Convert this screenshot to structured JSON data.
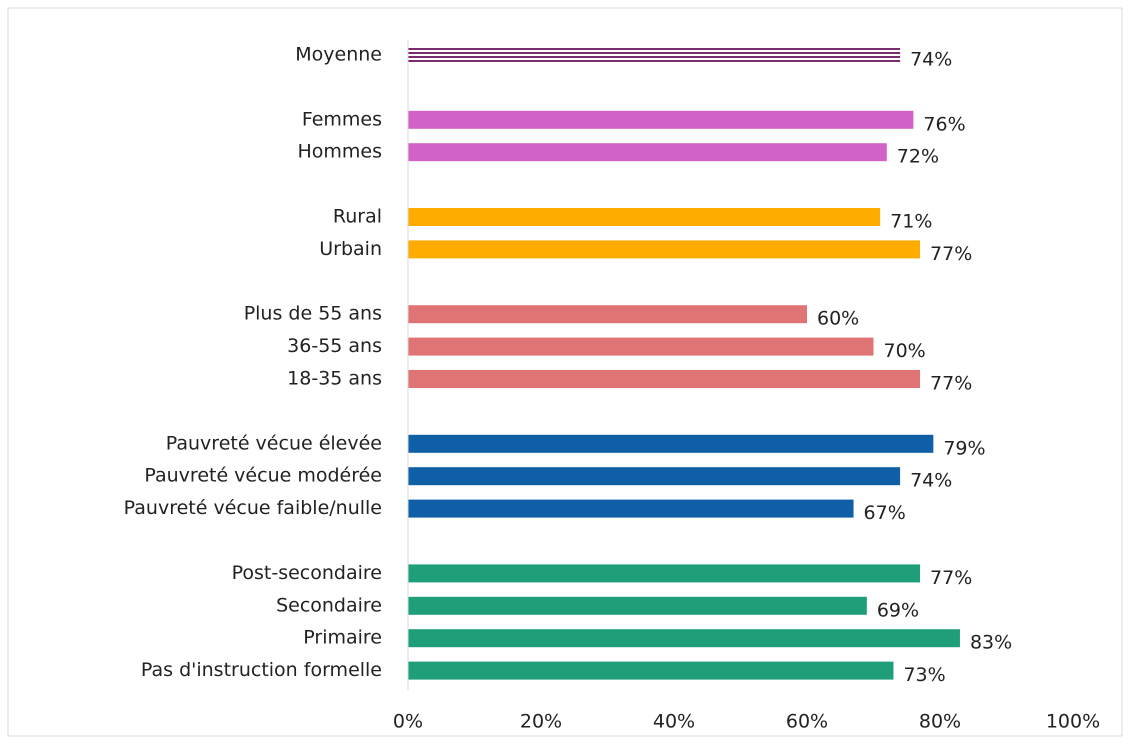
{
  "chart_data": {
    "type": "hbar",
    "categories": [
      "Moyenne",
      null,
      "Femmes",
      "Hommes",
      null,
      "Rural",
      "Urbain",
      null,
      "Plus de 55 ans",
      "36-55 ans",
      "18-35 ans",
      null,
      "Pauvreté vécue élevée",
      "Pauvreté vécue modérée",
      "Pauvreté vécue faible/nulle",
      null,
      "Post-secondaire",
      "Secondaire",
      "Primaire",
      "Pas d'instruction formelle"
    ],
    "values": [
      74,
      null,
      76,
      72,
      null,
      71,
      77,
      null,
      60,
      70,
      77,
      null,
      79,
      74,
      67,
      null,
      77,
      69,
      83,
      73
    ],
    "value_labels": [
      "74%",
      null,
      "76%",
      "72%",
      null,
      "71%",
      "77%",
      null,
      "60%",
      "70%",
      "77%",
      null,
      "79%",
      "74%",
      "67%",
      null,
      "77%",
      "69%",
      "83%",
      "73%"
    ],
    "colors": [
      "#7b2c6e",
      null,
      "#d163c6",
      "#d163c6",
      null,
      "#ffab00",
      "#ffab00",
      null,
      "#e07474",
      "#e07474",
      "#e07474",
      null,
      "#0f5fa6",
      "#0f5fa6",
      "#0f5fa6",
      null,
      "#1f9e7a",
      "#1f9e7a",
      "#1f9e7a",
      "#1f9e7a"
    ],
    "patterns": [
      "horizontal-lines",
      null,
      "solid",
      "solid",
      null,
      "solid",
      "solid",
      null,
      "solid",
      "solid",
      "solid",
      null,
      "solid",
      "solid",
      "solid",
      null,
      "solid",
      "solid",
      "solid",
      "solid"
    ],
    "xlim": [
      0,
      100
    ],
    "xticks": [
      {
        "value": 0,
        "label": "0%"
      },
      {
        "value": 20,
        "label": "20%"
      },
      {
        "value": 40,
        "label": "40%"
      },
      {
        "value": 60,
        "label": "60%"
      },
      {
        "value": 80,
        "label": "80%"
      },
      {
        "value": 100,
        "label": "100%"
      }
    ]
  }
}
